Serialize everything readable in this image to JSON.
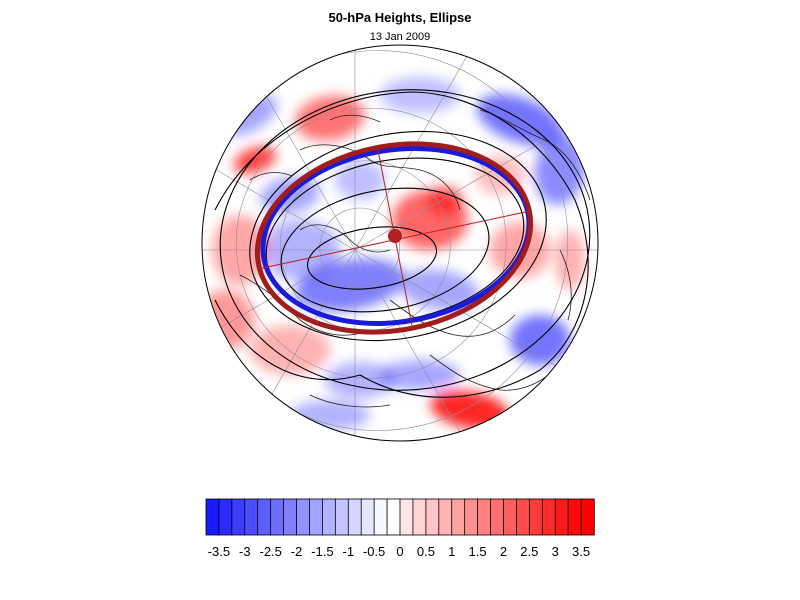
{
  "title": "50-hPa Heights, Ellipse",
  "subtitle": "13 Jan 2009",
  "map": {
    "projection": "north-polar-stereographic",
    "field_colors": {
      "negative": "#0000ff",
      "positive": "#ff0000",
      "neutral": "#ffffff"
    },
    "ellipse_colors": {
      "observed": "#1a1ad9",
      "fitted": "#a11c1c"
    },
    "contour_color": "#000000",
    "center_marker_color": "#b22222"
  },
  "colorbar": {
    "tick_labels": [
      "-3.5",
      "-3",
      "-2.5",
      "-2",
      "-1.5",
      "-1",
      "-0.5",
      "0",
      "0.5",
      "1",
      "1.5",
      "2",
      "2.5",
      "3",
      "3.5"
    ],
    "levels": [
      -3.5,
      -3.25,
      -3,
      -2.75,
      -2.5,
      -2.25,
      -2,
      -1.75,
      -1.5,
      -1.25,
      -1,
      -0.75,
      -0.5,
      -0.25,
      0,
      0.25,
      0.5,
      0.75,
      1,
      1.25,
      1.5,
      1.75,
      2,
      2.25,
      2.5,
      2.75,
      3,
      3.25,
      3.5,
      3.75
    ],
    "range": [
      -3.75,
      3.75
    ],
    "low_color": "#0000ff",
    "high_color": "#ff0000"
  }
}
